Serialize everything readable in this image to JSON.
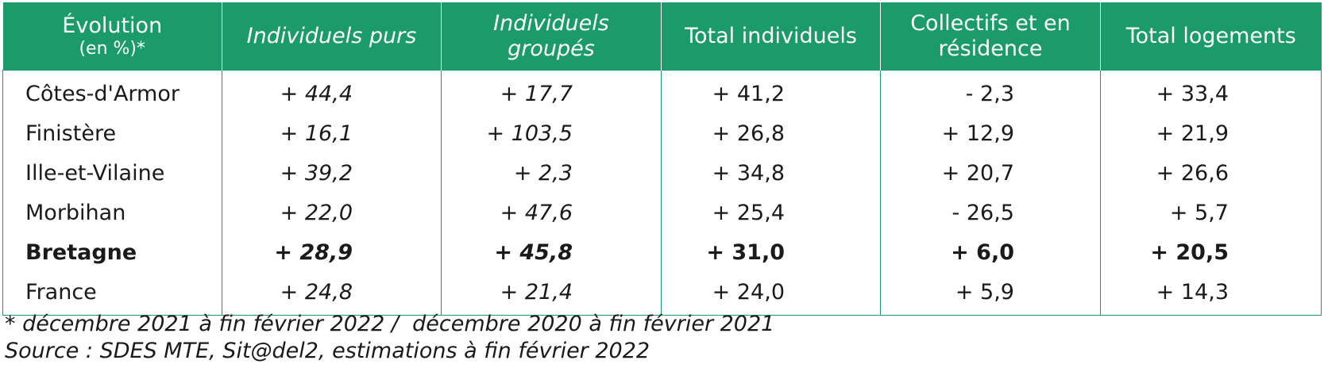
{
  "table": {
    "header": {
      "col0_line1": "Évolution",
      "col0_line2": "(en %)*",
      "col1": "Individuels purs",
      "col2_line1": "Individuels",
      "col2_line2": "groupés",
      "col3": "Total individuels",
      "col4_line1": "Collectifs et en",
      "col4_line2": "résidence",
      "col5": "Total logements"
    },
    "rows": [
      {
        "region": "Côtes-d'Armor",
        "ind_purs": "+ 44,4",
        "ind_groupes": "+ 17,7",
        "total_ind": "+ 41,2",
        "collectifs": "- 2,3",
        "total_log": "+ 33,4"
      },
      {
        "region": "Finistère",
        "ind_purs": "+ 16,1",
        "ind_groupes": "+ 103,5",
        "total_ind": "+ 26,8",
        "collectifs": "+ 12,9",
        "total_log": "+ 21,9"
      },
      {
        "region": "Ille-et-Vilaine",
        "ind_purs": "+ 39,2",
        "ind_groupes": "+ 2,3",
        "total_ind": "+ 34,8",
        "collectifs": "+ 20,7",
        "total_log": "+ 26,6"
      },
      {
        "region": "Morbihan",
        "ind_purs": "+ 22,0",
        "ind_groupes": "+ 47,6",
        "total_ind": "+ 25,4",
        "collectifs": "- 26,5",
        "total_log": "+ 5,7"
      },
      {
        "region": "Bretagne",
        "ind_purs": "+ 28,9",
        "ind_groupes": "+ 45,8",
        "total_ind": "+ 31,0",
        "collectifs": "+ 6,0",
        "total_log": "+ 20,5"
      },
      {
        "region": "France",
        "ind_purs": "+ 24,8",
        "ind_groupes": "+ 21,4",
        "total_ind": "+ 24,0",
        "collectifs": "+ 5,9",
        "total_log": "+ 14,3"
      }
    ]
  },
  "footnotes": {
    "period": "* décembre 2021 à fin février 2022 /  décembre 2020 à fin février 2021",
    "source": "Source : SDES MTE, Sit@del2, estimations à fin février 2022"
  },
  "colors": {
    "header_bg": "#1a9b69",
    "header_text": "#ffffff",
    "border": "#1a9b69"
  }
}
